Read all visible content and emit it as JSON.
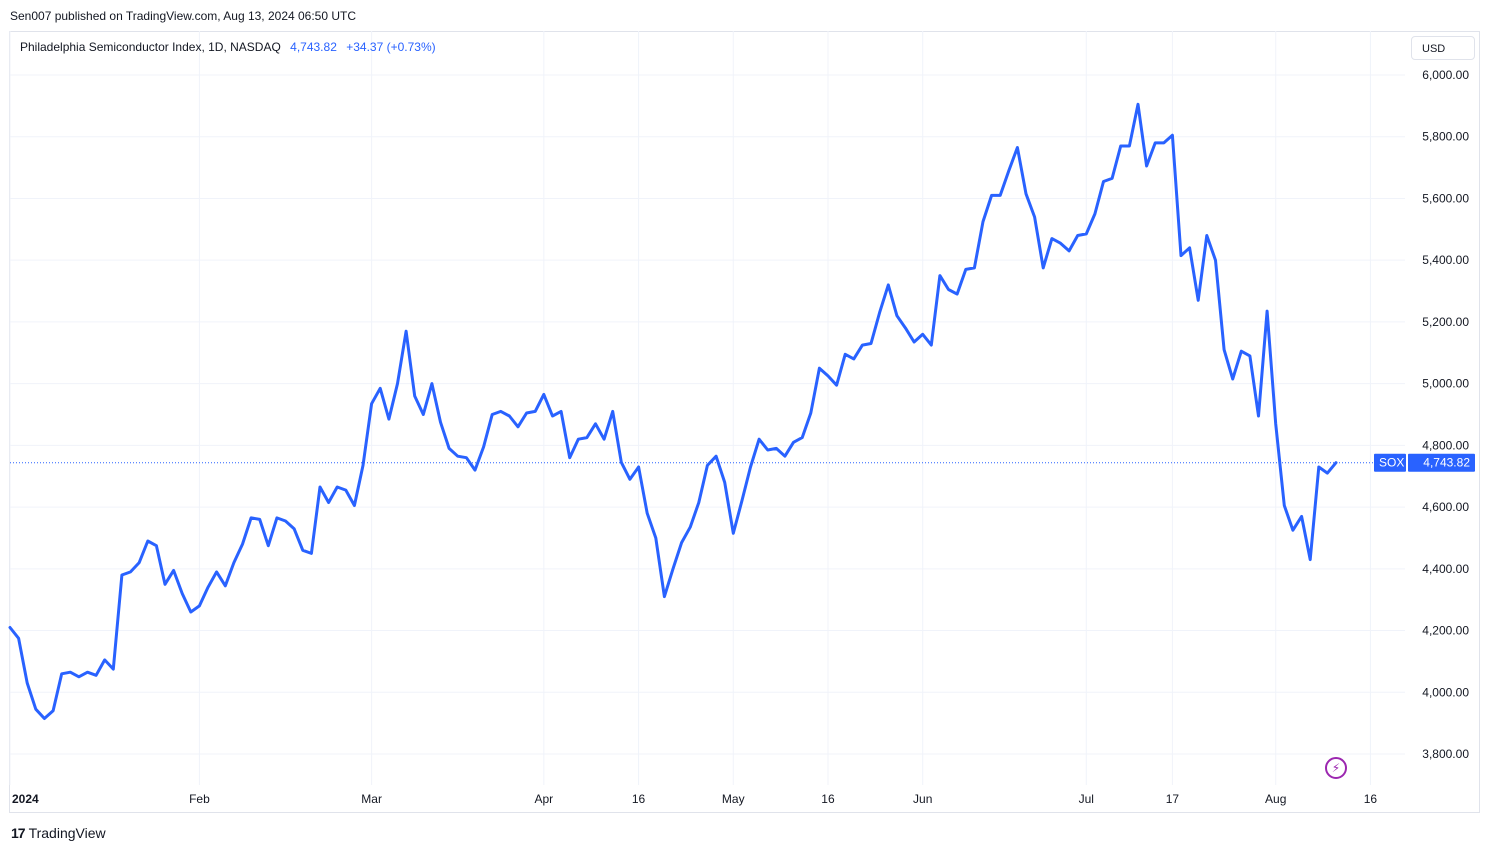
{
  "header": {
    "credit": "Sen007 published on TradingView.com, Aug 13, 2024 06:50 UTC"
  },
  "legend": {
    "symbol": "Philadelphia Semiconductor Index, 1D, NASDAQ",
    "last": "4,743.82",
    "change": "+34.37 (+0.73%)"
  },
  "currency_button": "USD",
  "price_tag": {
    "symbol": "SOX",
    "value": "4,743.82"
  },
  "footer": {
    "brand": "TradingView",
    "logo_mark": "17"
  },
  "icons": {
    "bolt": "lightning-icon",
    "logo": "tradingview-logo-icon"
  },
  "colors": {
    "line": "#2962ff",
    "grid": "#f0f3fa",
    "text": "#131722",
    "tag_bg": "#2962ff"
  },
  "chart_data": {
    "type": "line",
    "title": "Philadelphia Semiconductor Index, 1D, NASDAQ",
    "ylabel": "",
    "xlabel": "",
    "ylim": [
      3800,
      6000
    ],
    "grid": true,
    "y_ticks": [
      {
        "v": 6000,
        "label": "6,000.00"
      },
      {
        "v": 5800,
        "label": "5,800.00"
      },
      {
        "v": 5600,
        "label": "5,600.00"
      },
      {
        "v": 5400,
        "label": "5,400.00"
      },
      {
        "v": 5200,
        "label": "5,200.00"
      },
      {
        "v": 5000,
        "label": "5,000.00"
      },
      {
        "v": 4800,
        "label": "4,800.00"
      },
      {
        "v": 4600,
        "label": "4,600.00"
      },
      {
        "v": 4400,
        "label": "4,400.00"
      },
      {
        "v": 4200,
        "label": "4,200.00"
      },
      {
        "v": 4000,
        "label": "4,000.00"
      },
      {
        "v": 3800,
        "label": "3,800.00"
      }
    ],
    "x_ticks": [
      {
        "i": 0,
        "label": "2024",
        "bold": true
      },
      {
        "i": 22,
        "label": "Feb"
      },
      {
        "i": 42,
        "label": "Mar"
      },
      {
        "i": 62,
        "label": "Apr"
      },
      {
        "i": 73,
        "label": "16"
      },
      {
        "i": 84,
        "label": "May"
      },
      {
        "i": 95,
        "label": "16"
      },
      {
        "i": 106,
        "label": "Jun"
      },
      {
        "i": 125,
        "label": "Jul"
      },
      {
        "i": 135,
        "label": "17"
      },
      {
        "i": 147,
        "label": "Aug"
      },
      {
        "i": 158,
        "label": "16"
      }
    ],
    "last_value": 4743.82,
    "series": [
      {
        "values": [
          4210,
          4175,
          4030,
          3945,
          3915,
          3940,
          4060,
          4065,
          4050,
          4065,
          4055,
          4105,
          4075,
          4380,
          4390,
          4420,
          4490,
          4475,
          4350,
          4395,
          4320,
          4260,
          4280,
          4340,
          4390,
          4345,
          4420,
          4480,
          4565,
          4560,
          4475,
          4565,
          4555,
          4530,
          4460,
          4450,
          4665,
          4615,
          4665,
          4655,
          4605,
          4735,
          4935,
          4985,
          4885,
          5000,
          5170,
          4960,
          4900,
          5000,
          4875,
          4790,
          4765,
          4760,
          4720,
          4795,
          4900,
          4910,
          4895,
          4860,
          4905,
          4910,
          4965,
          4895,
          4910,
          4760,
          4820,
          4825,
          4870,
          4820,
          4910,
          4745,
          4690,
          4730,
          4580,
          4500,
          4310,
          4400,
          4485,
          4535,
          4615,
          4735,
          4765,
          4680,
          4515,
          4620,
          4730,
          4820,
          4785,
          4790,
          4765,
          4810,
          4825,
          4905,
          5050,
          5025,
          4995,
          5095,
          5080,
          5125,
          5130,
          5230,
          5320,
          5220,
          5180,
          5135,
          5160,
          5125,
          5350,
          5305,
          5290,
          5370,
          5375,
          5525,
          5610,
          5610,
          5690,
          5765,
          5615,
          5540,
          5375,
          5470,
          5455,
          5430,
          5480,
          5485,
          5550,
          5655,
          5665,
          5770,
          5770,
          5905,
          5705,
          5780,
          5780,
          5805,
          5415,
          5440,
          5270,
          5480,
          5400,
          5110,
          5015,
          5105,
          5090,
          4895,
          5235,
          4870,
          4605,
          4525,
          4570,
          4430,
          4730,
          4710,
          4743.82
        ]
      }
    ]
  }
}
